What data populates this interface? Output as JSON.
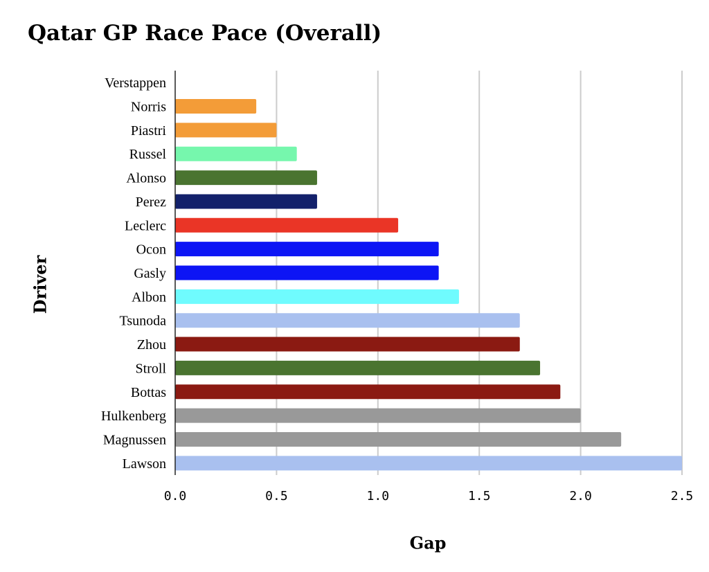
{
  "chart_data": {
    "type": "bar",
    "orientation": "horizontal",
    "title": "Qatar GP Race Pace (Overall)",
    "xlabel": "Gap",
    "ylabel": "Driver",
    "categories": [
      "Verstappen",
      "Norris",
      "Piastri",
      "Russel",
      "Alonso",
      "Perez",
      "Leclerc",
      "Ocon",
      "Gasly",
      "Albon",
      "Tsunoda",
      "Zhou",
      "Stroll",
      "Bottas",
      "Hulkenberg",
      "Magnussen",
      "Lawson"
    ],
    "values": [
      0,
      0.4,
      0.5,
      0.6,
      0.7,
      0.7,
      1.1,
      1.3,
      1.3,
      1.4,
      1.7,
      1.7,
      1.8,
      1.9,
      2.0,
      2.2,
      2.5
    ],
    "colors": [
      "#e8962f",
      "#f39c38",
      "#f39c38",
      "#76f7ad",
      "#4a7430",
      "#13216b",
      "#ea3526",
      "#0d15f5",
      "#0d15f5",
      "#6ffbfe",
      "#a9c0ef",
      "#8b1a12",
      "#4a7430",
      "#8b1a12",
      "#999999",
      "#999999",
      "#a9c0ef"
    ],
    "xlim": [
      0,
      2.5
    ],
    "xticks": [
      "0.0",
      "0.5",
      "1.0",
      "1.5",
      "2.0",
      "2.5"
    ],
    "grid": true,
    "legend": "none"
  }
}
